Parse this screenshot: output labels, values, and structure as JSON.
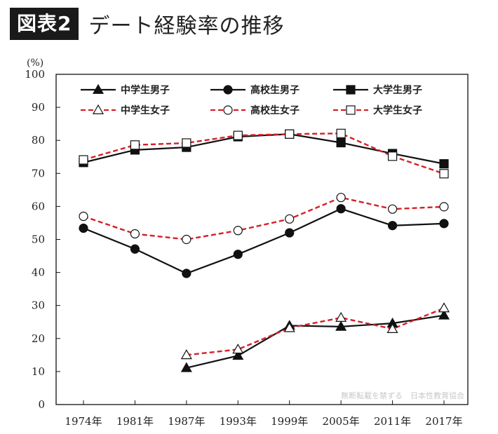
{
  "header": {
    "badge": "図表2",
    "title": "デート経験率の推移"
  },
  "watermark": "無断転載を禁ずる　日本性教育協会",
  "colors": {
    "male_line": "#111111",
    "female_line": "#d61f26",
    "marker_fill_open": "#ffffff",
    "marker_fill_solid": "#111111"
  },
  "chart_data": {
    "type": "line",
    "unit_label": "(%)",
    "ylim": [
      0,
      100
    ],
    "yticks": [
      0,
      10,
      20,
      30,
      40,
      50,
      60,
      70,
      80,
      90,
      100
    ],
    "categories": [
      "1974年",
      "1981年",
      "1987年",
      "1993年",
      "1999年",
      "2005年",
      "2011年",
      "2017年"
    ],
    "grid": false,
    "legend_position": "top",
    "series": [
      {
        "name": "中学生男子",
        "marker": "triangle",
        "style": "solid",
        "gender": "male",
        "values": [
          null,
          null,
          11.1,
          14.8,
          23.9,
          23.6,
          24.6,
          27.0
        ]
      },
      {
        "name": "高校生男子",
        "marker": "circle",
        "style": "solid",
        "gender": "male",
        "values": [
          53.4,
          47.1,
          39.7,
          45.5,
          52.0,
          59.3,
          54.2,
          54.8
        ]
      },
      {
        "name": "大学生男子",
        "marker": "square",
        "style": "solid",
        "gender": "male",
        "values": [
          73.3,
          77.1,
          77.9,
          81.1,
          81.9,
          79.3,
          76.0,
          72.9
        ]
      },
      {
        "name": "中学生女子",
        "marker": "triangle",
        "style": "dashed",
        "gender": "female",
        "values": [
          null,
          null,
          15.0,
          16.7,
          23.2,
          26.3,
          22.9,
          29.2
        ]
      },
      {
        "name": "高校生女子",
        "marker": "circle",
        "style": "dashed",
        "gender": "female",
        "values": [
          57.0,
          51.7,
          50.0,
          52.7,
          56.2,
          62.7,
          59.2,
          59.9
        ]
      },
      {
        "name": "大学生女子",
        "marker": "square",
        "style": "dashed",
        "gender": "female",
        "values": [
          74.1,
          78.6,
          79.2,
          81.5,
          81.9,
          82.1,
          75.2,
          69.9
        ]
      }
    ]
  }
}
